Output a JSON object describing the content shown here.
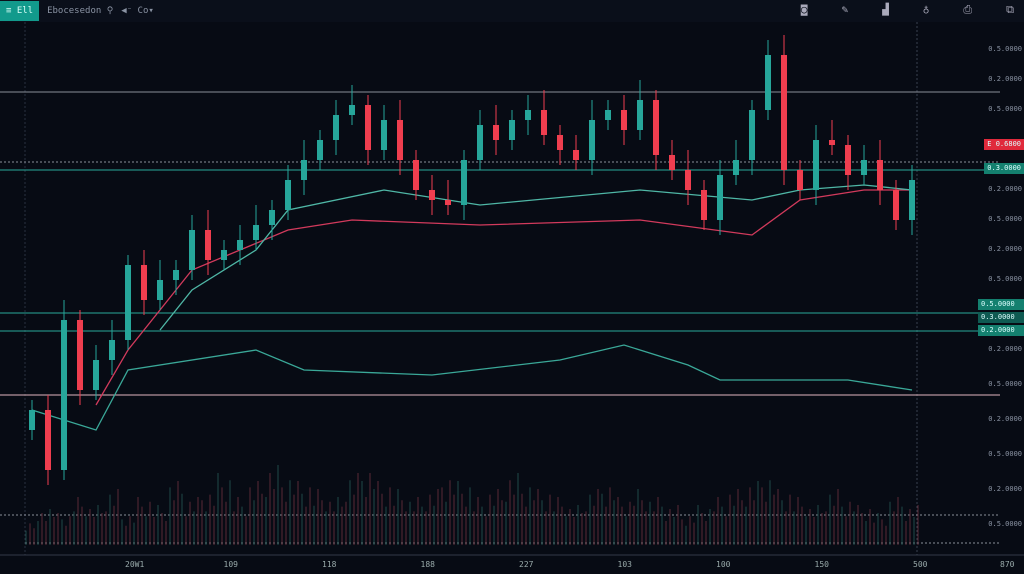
{
  "header": {
    "symbol_badge": "≡ Ell",
    "title": "Ebocesedon ⚲",
    "interval": "◀⁻ Co▾"
  },
  "toolbar": {
    "icons": [
      "camera-icon",
      "pencil-icon",
      "bars-icon",
      "alert-icon",
      "share-icon",
      "layout-icon"
    ],
    "glyphs": [
      "◙",
      "✎",
      "▟",
      "♁",
      "⎙",
      "⧉"
    ]
  },
  "price_axis": {
    "labels": [
      "0.5.0000",
      "0.2.0000",
      "0.5.0000",
      "0.2.0000",
      "0.5.0000",
      "0.2.0000",
      "0.5.0000",
      "0.2.0000",
      "0.5.0000",
      "0.2.0000",
      "0.5.0000",
      "0.2.0000",
      "0.5.0000"
    ],
    "current_price_tag": "E 0.6800",
    "tags": [
      "0.5.0000",
      "0.3.0000",
      "0.2.0000"
    ],
    "teal_tag": "0.3.0000"
  },
  "time_axis": {
    "labels": [
      "20W1",
      "109",
      "118",
      "188",
      "227",
      "103",
      "100",
      "150",
      "500"
    ],
    "corner": "870"
  },
  "colors": {
    "up": "#26a69a",
    "down": "#ef3e4f",
    "ma_slow": "#d23a5c",
    "ma_fast": "#4fb7a6",
    "bg": "#070b14"
  },
  "chart_data": {
    "type": "candlestick",
    "ylim": [
      0,
      100
    ],
    "close": [
      26,
      14,
      44,
      30,
      36,
      40,
      55,
      48,
      52,
      54,
      62,
      56,
      58,
      60,
      63,
      66,
      72,
      76,
      80,
      85,
      87,
      78,
      84,
      76,
      70,
      68,
      67,
      76,
      83,
      80,
      84,
      86,
      81,
      78,
      76,
      84,
      86,
      82,
      88,
      77,
      74,
      70,
      64,
      73,
      76,
      86,
      97,
      74,
      70,
      80,
      79,
      73,
      76,
      70,
      64,
      72
    ],
    "first_open": 22,
    "volume": [
      3,
      5,
      4,
      6,
      5,
      7,
      4,
      6,
      5,
      8,
      6,
      7,
      9,
      6,
      8,
      10,
      9,
      8,
      7,
      6,
      9,
      10,
      8,
      7,
      6,
      7,
      9,
      8,
      6,
      7,
      9,
      8,
      7,
      6,
      5,
      7,
      8,
      6,
      7,
      6,
      5,
      4,
      5,
      6,
      7,
      8,
      9,
      7,
      6,
      5,
      7,
      6,
      5,
      4,
      6,
      5
    ],
    "ma_slow": [
      [
        4,
        27
      ],
      [
        6,
        38
      ],
      [
        10,
        54
      ],
      [
        16,
        62
      ],
      [
        20,
        64
      ],
      [
        28,
        63
      ],
      [
        38,
        64
      ],
      [
        45,
        61
      ],
      [
        48,
        68
      ],
      [
        52,
        70
      ],
      [
        55,
        70
      ]
    ],
    "ma_fast": [
      [
        8,
        42
      ],
      [
        10,
        50
      ],
      [
        14,
        58
      ],
      [
        16,
        66
      ],
      [
        22,
        70
      ],
      [
        28,
        67
      ],
      [
        38,
        70
      ],
      [
        45,
        68
      ],
      [
        48,
        70
      ],
      [
        52,
        71
      ],
      [
        55,
        70
      ]
    ],
    "oscillator": [
      [
        0,
        26
      ],
      [
        4,
        22
      ],
      [
        6,
        34
      ],
      [
        14,
        38
      ],
      [
        17,
        34
      ],
      [
        25,
        33
      ],
      [
        33,
        36
      ],
      [
        37,
        39
      ],
      [
        41,
        35
      ],
      [
        43,
        32
      ],
      [
        51,
        32
      ],
      [
        55,
        30
      ]
    ]
  }
}
